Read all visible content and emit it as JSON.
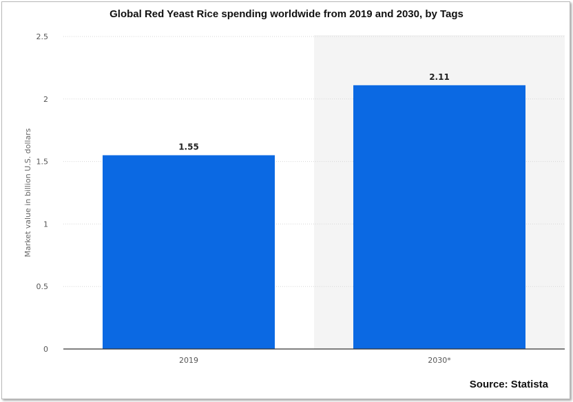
{
  "chart_data": {
    "type": "bar",
    "title": "Global Red Yeast Rice spending worldwide from 2019 and 2030, by Tags",
    "categories": [
      "2019",
      "2030*"
    ],
    "values": [
      1.55,
      2.11
    ],
    "data_labels": [
      "1.55",
      "2.11"
    ],
    "ylabel": "Market value in billion U.S. dollars",
    "xlabel": "",
    "ylim": [
      0,
      2.5
    ],
    "yticks": [
      "0",
      "0.5",
      "1",
      "1.5",
      "2",
      "2.5"
    ],
    "grid": true,
    "bar_color": "#0b69e3",
    "highlight_category": "2030*",
    "highlight_color": "#f4f4f4",
    "source": "Source: Statista"
  }
}
